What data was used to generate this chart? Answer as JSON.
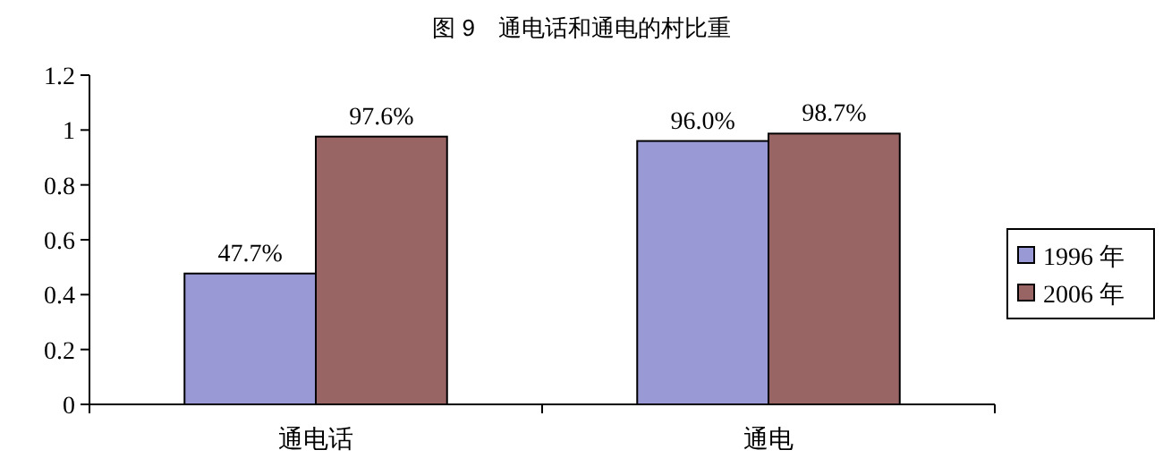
{
  "chart_data": {
    "type": "bar",
    "title": "图 9　通电话和通电的村比重",
    "categories": [
      "通电话",
      "通电"
    ],
    "series": [
      {
        "name": "1996 年",
        "color": "#9999d6",
        "values": [
          0.477,
          0.96
        ],
        "value_labels": [
          "47.7%",
          "96.0%"
        ]
      },
      {
        "name": "2006 年",
        "color": "#996464",
        "values": [
          0.976,
          0.987
        ],
        "value_labels": [
          "97.6%",
          "98.7%"
        ]
      }
    ],
    "ylim": [
      0,
      1.2
    ],
    "yticks": [
      0,
      0.2,
      0.4,
      0.6,
      0.8,
      1,
      1.2
    ],
    "legend": "right"
  }
}
